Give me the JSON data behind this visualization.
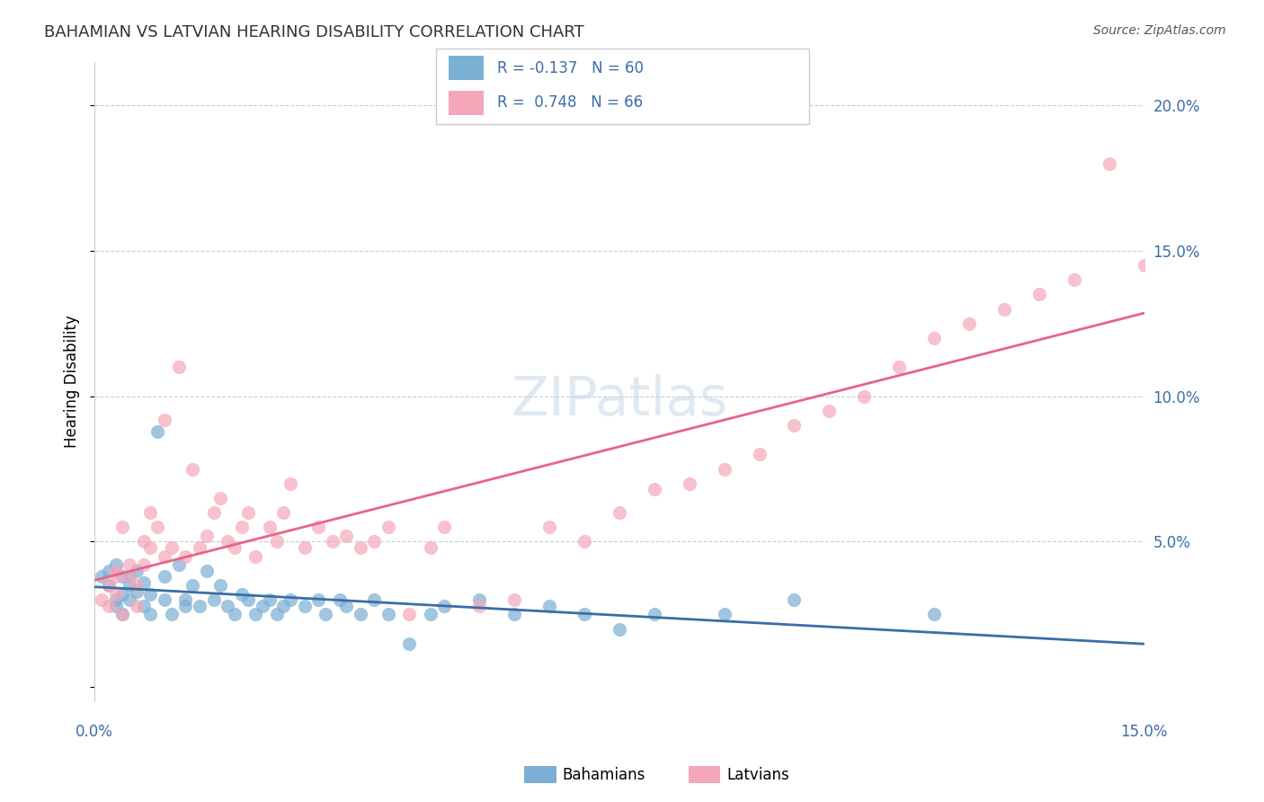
{
  "title": "BAHAMIAN VS LATVIAN HEARING DISABILITY CORRELATION CHART",
  "source": "Source: ZipAtlas.com",
  "ylabel": "Hearing Disability",
  "r_bahamian": -0.137,
  "n_bahamian": 60,
  "r_latvian": 0.748,
  "n_latvian": 66,
  "xlim": [
    0.0,
    0.15
  ],
  "ylim": [
    -0.005,
    0.215
  ],
  "yticks": [
    0.0,
    0.05,
    0.1,
    0.15,
    0.2
  ],
  "ytick_labels": [
    "",
    "5.0%",
    "10.0%",
    "15.0%",
    "20.0%"
  ],
  "color_bahamian": "#7bafd4",
  "color_latvian": "#f4a7b9",
  "line_color_bahamian": "#3a6ea5",
  "line_color_latvian": "#e8638a",
  "watermark": "ZIPatlas",
  "background_color": "#ffffff",
  "bahamian_x": [
    0.001,
    0.002,
    0.002,
    0.003,
    0.003,
    0.003,
    0.004,
    0.004,
    0.004,
    0.005,
    0.005,
    0.005,
    0.006,
    0.006,
    0.007,
    0.007,
    0.008,
    0.008,
    0.009,
    0.01,
    0.01,
    0.011,
    0.012,
    0.013,
    0.013,
    0.014,
    0.015,
    0.016,
    0.017,
    0.018,
    0.019,
    0.02,
    0.021,
    0.022,
    0.023,
    0.024,
    0.025,
    0.026,
    0.027,
    0.028,
    0.03,
    0.032,
    0.033,
    0.035,
    0.036,
    0.038,
    0.04,
    0.042,
    0.045,
    0.048,
    0.05,
    0.055,
    0.06,
    0.065,
    0.07,
    0.075,
    0.08,
    0.09,
    0.1,
    0.12
  ],
  "bahamian_y": [
    0.038,
    0.035,
    0.04,
    0.03,
    0.042,
    0.028,
    0.032,
    0.038,
    0.025,
    0.03,
    0.035,
    0.038,
    0.033,
    0.04,
    0.028,
    0.036,
    0.025,
    0.032,
    0.088,
    0.03,
    0.038,
    0.025,
    0.042,
    0.028,
    0.03,
    0.035,
    0.028,
    0.04,
    0.03,
    0.035,
    0.028,
    0.025,
    0.032,
    0.03,
    0.025,
    0.028,
    0.03,
    0.025,
    0.028,
    0.03,
    0.028,
    0.03,
    0.025,
    0.03,
    0.028,
    0.025,
    0.03,
    0.025,
    0.015,
    0.025,
    0.028,
    0.03,
    0.025,
    0.028,
    0.025,
    0.02,
    0.025,
    0.025,
    0.03,
    0.025
  ],
  "latvian_x": [
    0.001,
    0.002,
    0.002,
    0.003,
    0.003,
    0.003,
    0.004,
    0.004,
    0.005,
    0.005,
    0.006,
    0.006,
    0.007,
    0.007,
    0.008,
    0.008,
    0.009,
    0.01,
    0.01,
    0.011,
    0.012,
    0.013,
    0.014,
    0.015,
    0.016,
    0.017,
    0.018,
    0.019,
    0.02,
    0.021,
    0.022,
    0.023,
    0.025,
    0.026,
    0.027,
    0.028,
    0.03,
    0.032,
    0.034,
    0.036,
    0.038,
    0.04,
    0.042,
    0.045,
    0.048,
    0.05,
    0.055,
    0.06,
    0.065,
    0.07,
    0.075,
    0.08,
    0.085,
    0.09,
    0.095,
    0.1,
    0.105,
    0.11,
    0.115,
    0.12,
    0.125,
    0.13,
    0.135,
    0.14,
    0.145,
    0.15
  ],
  "latvian_y": [
    0.03,
    0.035,
    0.028,
    0.04,
    0.032,
    0.038,
    0.025,
    0.055,
    0.042,
    0.038,
    0.035,
    0.028,
    0.05,
    0.042,
    0.06,
    0.048,
    0.055,
    0.045,
    0.092,
    0.048,
    0.11,
    0.045,
    0.075,
    0.048,
    0.052,
    0.06,
    0.065,
    0.05,
    0.048,
    0.055,
    0.06,
    0.045,
    0.055,
    0.05,
    0.06,
    0.07,
    0.048,
    0.055,
    0.05,
    0.052,
    0.048,
    0.05,
    0.055,
    0.025,
    0.048,
    0.055,
    0.028,
    0.03,
    0.055,
    0.05,
    0.06,
    0.068,
    0.07,
    0.075,
    0.08,
    0.09,
    0.095,
    0.1,
    0.11,
    0.12,
    0.125,
    0.13,
    0.135,
    0.14,
    0.18,
    0.145
  ]
}
